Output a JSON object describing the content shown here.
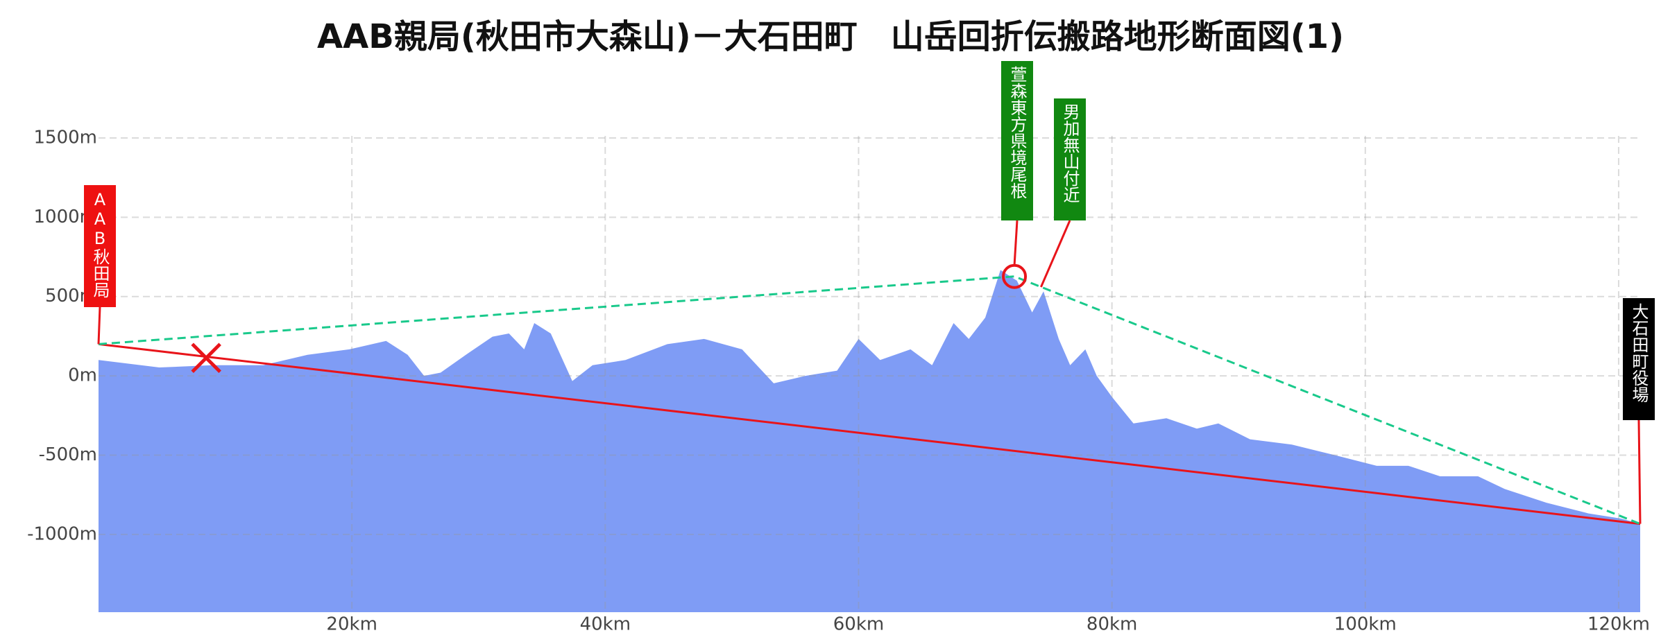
{
  "chart_data": {
    "type": "area",
    "title": "AAB親局(秋田市大森山)－大石田町　山岳回折伝搬路地形断面図(1)",
    "x": [
      0,
      4.8,
      9,
      13,
      16.5,
      19.8,
      22.7,
      24.4,
      25.7,
      27,
      29,
      31.1,
      32.4,
      33.6,
      34.4,
      35.7,
      37.4,
      39,
      41.6,
      44.9,
      47.8,
      50.8,
      53.3,
      55.8,
      58.3,
      60,
      61.7,
      64.1,
      65.8,
      67.5,
      68.7,
      70,
      71.2,
      72.5,
      73.7,
      74.6,
      75.8,
      76.7,
      77.9,
      78.8,
      80,
      81.7,
      84.3,
      86.7,
      88.4,
      90.9,
      94.2,
      97.6,
      100.9,
      103.4,
      105.9,
      108.9,
      111,
      114.3,
      117.6,
      120.2,
      121.7
    ],
    "series": [
      {
        "color": "#7f9cf5",
        "values": [
          100,
          53,
          67,
          67,
          133,
          167,
          220,
          133,
          0,
          20,
          133,
          247,
          267,
          167,
          333,
          267,
          -33,
          67,
          100,
          200,
          233,
          167,
          -47,
          0,
          33,
          233,
          100,
          167,
          67,
          333,
          233,
          367,
          667,
          600,
          400,
          533,
          233,
          67,
          167,
          0,
          -133,
          -300,
          -267,
          -333,
          -300,
          -400,
          -433,
          -500,
          -567,
          -567,
          -633,
          -633,
          -713,
          -800,
          -867,
          -900,
          -933
        ]
      }
    ],
    "xlim": [
      0,
      121.7
    ],
    "ylim": [
      -1490,
      1513
    ],
    "xticks": [
      {
        "value": 20,
        "label": "20km"
      },
      {
        "value": 40,
        "label": "40km"
      },
      {
        "value": 60,
        "label": "60km"
      },
      {
        "value": 80,
        "label": "80km"
      },
      {
        "value": 100,
        "label": "100km"
      },
      {
        "value": 120,
        "label": "120km"
      }
    ],
    "yticks": [
      {
        "value": -1000,
        "label": "-1000m"
      },
      {
        "value": -500,
        "label": "-500m"
      },
      {
        "value": 0,
        "label": "0m"
      },
      {
        "value": 500,
        "label": "500m"
      },
      {
        "value": 1000,
        "label": "1000m"
      },
      {
        "value": 1500,
        "label": "1500m"
      }
    ],
    "grid": true,
    "lines": [
      {
        "color": "#e8141a",
        "dashed": false,
        "x": [
          0,
          121.7
        ],
        "y": [
          200,
          -933
        ]
      },
      {
        "color": "#19c98b",
        "dashed": true,
        "x": [
          0,
          72.3,
          121.7
        ],
        "y": [
          200,
          627,
          -933
        ]
      }
    ],
    "markers": [
      {
        "shape": "cross",
        "color": "#e8141a",
        "x": 8.5,
        "y": 113
      },
      {
        "shape": "circle",
        "color": "#e8141a",
        "x": 72.3,
        "y": 627
      }
    ],
    "annotations": [
      {
        "label": "AAB秋田局",
        "color": "#ee1111",
        "x": 0,
        "y": 200
      },
      {
        "label": "萱森東方県境尾根",
        "color": "#118811",
        "x": 72.3,
        "y": 627
      },
      {
        "label": "男加無山付近",
        "color": "#118811",
        "x": 74.4,
        "y": 560
      },
      {
        "label": "大石田町役場",
        "color": "#000000",
        "x": 121.7,
        "y": -933
      }
    ]
  }
}
